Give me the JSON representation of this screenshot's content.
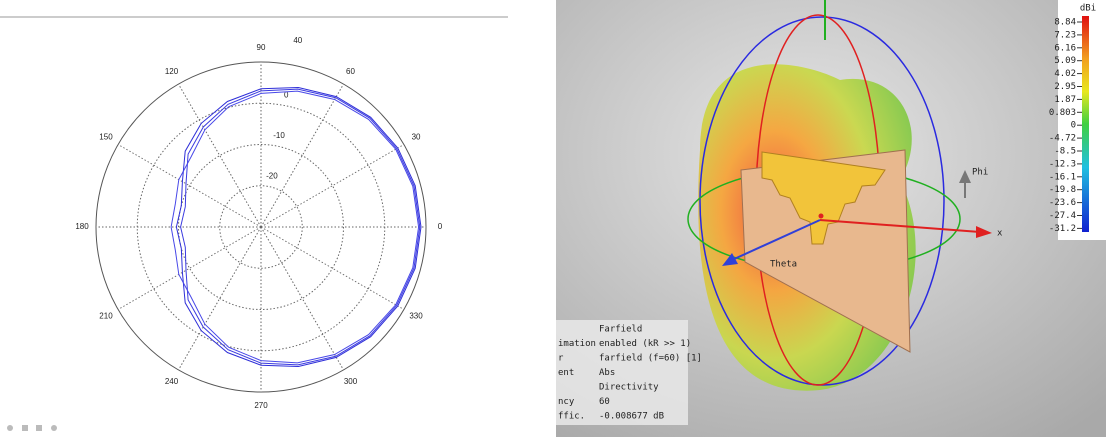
{
  "chart_data": [
    {
      "type": "polar",
      "x": [
        0,
        15,
        30,
        45,
        60,
        75,
        90,
        105,
        120,
        135,
        150,
        165,
        180,
        195,
        210,
        225,
        240,
        255,
        270,
        285,
        300,
        315,
        330,
        345
      ],
      "series": [
        {
          "color": "#2f2fd8",
          "values": [
            8.8,
            8.7,
            8.3,
            7.6,
            6.5,
            5.0,
            3.5,
            1.5,
            -1,
            -4,
            -8,
            -10,
            -9.5,
            -10,
            -8,
            -4,
            -1,
            1.5,
            3.5,
            5.0,
            6.5,
            7.6,
            8.3,
            8.7
          ]
        },
        {
          "color": "#3b3be0",
          "values": [
            8.5,
            8.4,
            8.0,
            7.3,
            6.2,
            4.6,
            3.0,
            0.8,
            -2,
            -5,
            -9,
            -11,
            -10.5,
            -11,
            -9,
            -5,
            -2,
            0.8,
            3.0,
            4.6,
            6.2,
            7.3,
            8.0,
            8.4
          ]
        },
        {
          "color": "#4848e8",
          "values": [
            8.2,
            8.1,
            7.7,
            6.9,
            5.7,
            4.1,
            2.4,
            0.2,
            -2.8,
            -6,
            -7,
            -8.5,
            -8.2,
            -8.5,
            -7,
            -6,
            -2.8,
            0.2,
            2.4,
            4.1,
            5.7,
            6.9,
            7.7,
            8.1
          ]
        }
      ],
      "xticks": [
        0,
        30,
        60,
        90,
        120,
        150,
        180,
        210,
        240,
        270,
        300,
        330
      ],
      "rlim": [
        -30,
        10
      ],
      "rticks": [
        -20,
        -10,
        0
      ],
      "annotation": "40",
      "grid": true
    },
    {
      "type": "farfield-3d",
      "colorbar_title": "dBi",
      "colorbar_ticks": [
        8.84,
        7.23,
        6.16,
        5.09,
        4.02,
        2.95,
        1.87,
        0.803,
        0,
        -4.72,
        -8.5,
        -12.3,
        -16.1,
        -19.8,
        -23.6,
        -27.4,
        -31.2
      ],
      "axis_labels": {
        "phi": "Phi",
        "theta": "Theta",
        "x": "x"
      },
      "info": [
        {
          "value": "Farfield"
        },
        {
          "key": "imation",
          "value": "enabled (kR >> 1)"
        },
        {
          "key": "r",
          "value": "farfield (f=60) [1]"
        },
        {
          "key": "ent",
          "value": "Abs"
        },
        {
          "value": "Directivity"
        },
        {
          "key": "ncy",
          "value": "60"
        },
        {
          "key": "ffic.",
          "value": "-0.008677 dB"
        }
      ]
    }
  ]
}
